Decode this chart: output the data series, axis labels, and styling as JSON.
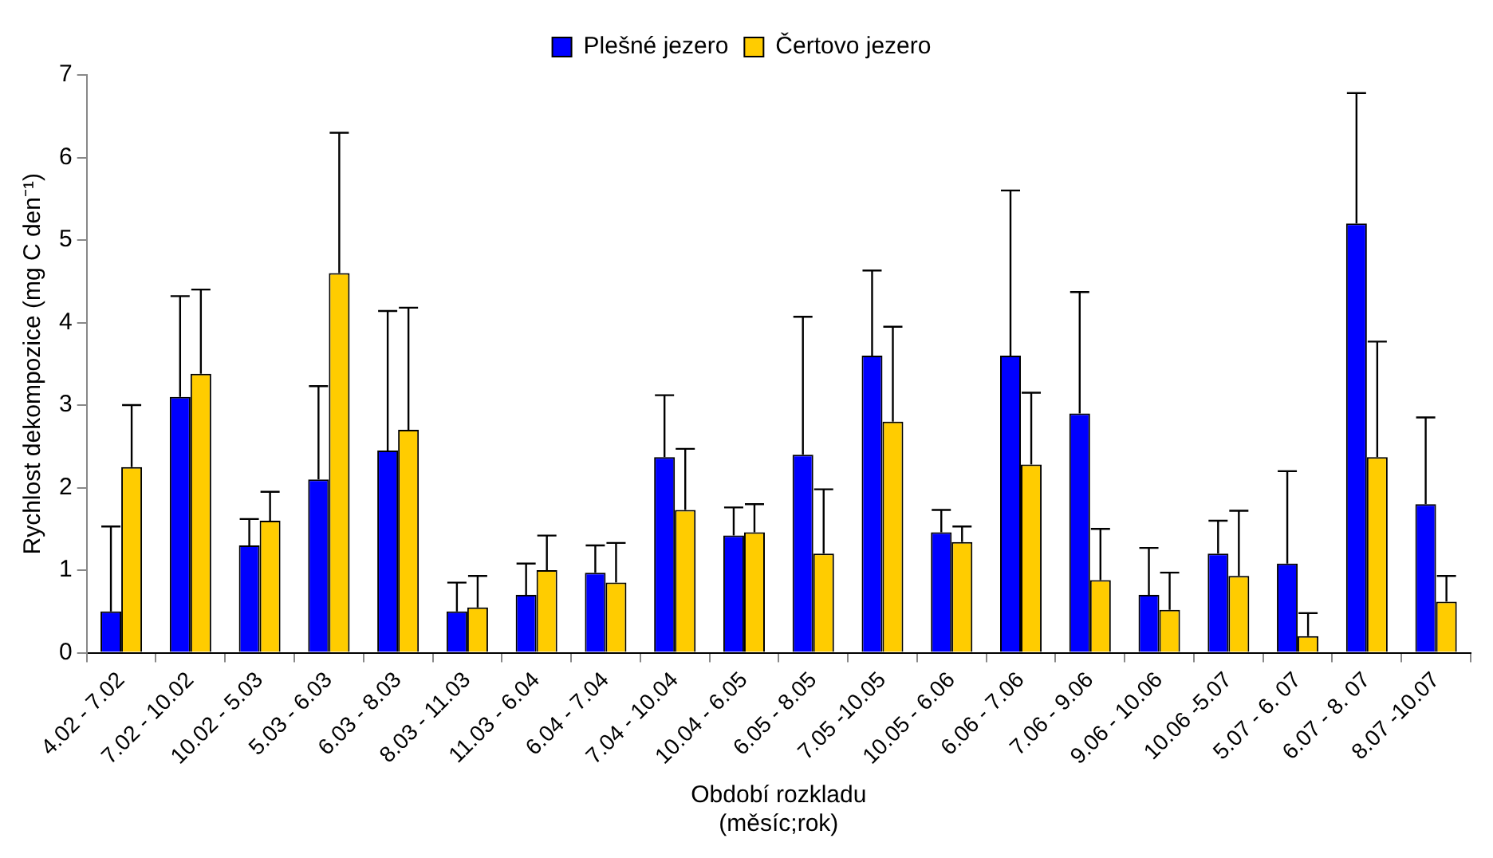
{
  "chart_data": {
    "type": "bar",
    "xlabel": "Období rozkladu\n(měsíc;rok)",
    "ylabel": "Rychlost dekompozice (mg C den⁻¹)",
    "categories": [
      "4.02 - 7.02",
      "7.02 - 10.02",
      "10.02 - 5.03",
      "5.03 - 6.03",
      "6.03 - 8.03",
      "8.03 - 11.03",
      "11.03 - 6.04",
      "6.04 - 7.04",
      "7.04 - 10.04",
      "10.04 - 6.05",
      "6.05 - 8.05",
      "7.05 -10.05",
      "10.05 - 6.06",
      "6.06 - 7.06",
      "7.06 - 9.06",
      "9.06 - 10.06",
      "10.06 -5.07",
      "5.07 - 6. 07",
      "6.07 - 8. 07",
      "8.07 -10.07"
    ],
    "series": [
      {
        "name": "Plešné jezero",
        "color": "#0000ff",
        "values": [
          0.5,
          3.1,
          1.3,
          2.1,
          2.45,
          0.5,
          0.7,
          0.97,
          2.37,
          1.42,
          2.4,
          3.6,
          1.46,
          3.6,
          2.9,
          0.7,
          1.2,
          1.08,
          5.2,
          1.8
        ],
        "errors": [
          [
            0.5,
            1.53
          ],
          [
            3.1,
            4.32
          ],
          [
            1.3,
            1.62
          ],
          [
            2.1,
            3.23
          ],
          [
            2.45,
            4.14
          ],
          [
            0.5,
            0.85
          ],
          [
            0.7,
            1.08
          ],
          [
            0.97,
            1.3
          ],
          [
            2.37,
            3.12
          ],
          [
            1.42,
            1.76
          ],
          [
            2.4,
            4.07
          ],
          [
            3.6,
            4.63
          ],
          [
            1.46,
            1.73
          ],
          [
            3.6,
            5.6
          ],
          [
            2.9,
            4.37
          ],
          [
            0.7,
            1.27
          ],
          [
            1.2,
            1.6
          ],
          [
            1.08,
            2.2
          ],
          [
            5.2,
            6.78
          ],
          [
            1.8,
            2.85
          ]
        ]
      },
      {
        "name": "Čertovo jezero",
        "color": "#ffcc00",
        "values": [
          2.25,
          3.38,
          1.6,
          4.6,
          2.7,
          0.55,
          1.0,
          0.85,
          1.73,
          1.46,
          1.2,
          2.8,
          1.34,
          2.28,
          0.88,
          0.52,
          0.93,
          0.2,
          2.37,
          0.62
        ],
        "errors": [
          [
            2.25,
            3.0
          ],
          [
            3.38,
            4.4
          ],
          [
            1.6,
            1.95
          ],
          [
            4.6,
            6.3
          ],
          [
            2.7,
            4.18
          ],
          [
            0.55,
            0.93
          ],
          [
            1.0,
            1.42
          ],
          [
            0.85,
            1.33
          ],
          [
            1.73,
            2.47
          ],
          [
            1.46,
            1.8
          ],
          [
            1.2,
            1.98
          ],
          [
            2.8,
            3.95
          ],
          [
            1.34,
            1.53
          ],
          [
            2.28,
            3.15
          ],
          [
            0.88,
            1.5
          ],
          [
            0.52,
            0.97
          ],
          [
            0.93,
            1.72
          ],
          [
            0.2,
            0.48
          ],
          [
            2.37,
            3.77
          ],
          [
            0.62,
            0.93
          ]
        ]
      }
    ],
    "ylim": [
      0,
      7
    ],
    "yticks": [
      0,
      1,
      2,
      3,
      4,
      5,
      6,
      7
    ],
    "grid": false,
    "legend": "top"
  }
}
